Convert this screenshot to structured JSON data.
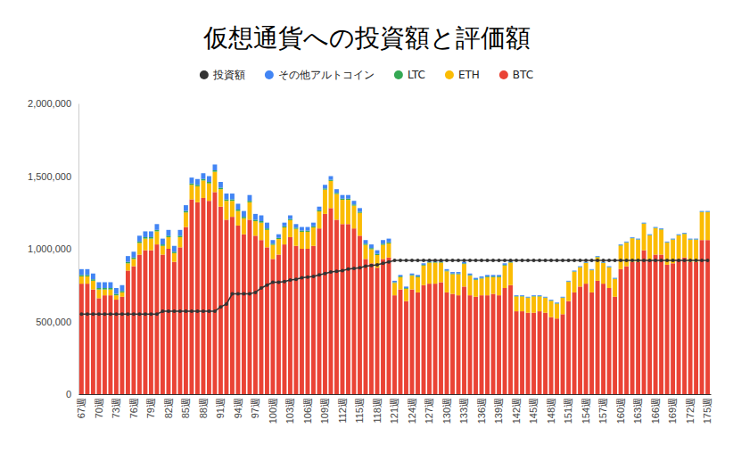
{
  "chart_data": {
    "type": "bar",
    "title": "仮想通貨への投資額と評価額",
    "stacked": true,
    "grid": false,
    "legend": "top",
    "categories": [
      "67週",
      null,
      null,
      "70週",
      null,
      null,
      "73週",
      null,
      null,
      "76週",
      null,
      null,
      "79週",
      null,
      null,
      "82週",
      null,
      null,
      "85週",
      null,
      null,
      "88週",
      null,
      null,
      "91週",
      null,
      null,
      "94週",
      null,
      null,
      "97週",
      null,
      null,
      "100週",
      null,
      null,
      "103週",
      null,
      null,
      "106週",
      null,
      null,
      "109週",
      null,
      null,
      "112週",
      null,
      null,
      "115週",
      null,
      null,
      "118週",
      null,
      null,
      "121週",
      null,
      null,
      "124週",
      null,
      null,
      "127週",
      null,
      null,
      "130週",
      null,
      null,
      "133週",
      null,
      null,
      "136週",
      null,
      null,
      "139週",
      null,
      null,
      "142週",
      null,
      null,
      "145週",
      null,
      null,
      "148週",
      null,
      null,
      "151週",
      null,
      null,
      "154週",
      null,
      null,
      "157週",
      null,
      null,
      "160週",
      null,
      null,
      "163週",
      null,
      null,
      "166週",
      null,
      null,
      "169週",
      null,
      null,
      "172週",
      null,
      null,
      "175週"
    ],
    "ylim": [
      0,
      2000000
    ],
    "yticks": [
      0,
      {
        "value": 500000,
        "label": "500,000"
      },
      {
        "value": 1000000,
        "label": "1,000,000"
      },
      {
        "value": 1500000,
        "label": "1,500,000"
      },
      {
        "value": 2000000,
        "label": "2,000,000"
      }
    ],
    "series": [
      {
        "name": "投資額",
        "type": "line",
        "marker": "circle",
        "color": "#333333",
        "values": [
          550000,
          550000,
          550000,
          550000,
          550000,
          550000,
          550000,
          550000,
          550000,
          550000,
          550000,
          550000,
          550000,
          550000,
          570000,
          570000,
          570000,
          570000,
          570000,
          570000,
          570000,
          570000,
          570000,
          570000,
          600000,
          620000,
          690000,
          690000,
          690000,
          690000,
          700000,
          730000,
          750000,
          770000,
          770000,
          775000,
          785000,
          790000,
          800000,
          805000,
          810000,
          820000,
          830000,
          840000,
          845000,
          850000,
          860000,
          865000,
          870000,
          880000,
          885000,
          890000,
          900000,
          910000,
          920000,
          920000,
          920000,
          920000,
          920000,
          920000,
          920000,
          920000,
          920000,
          920000,
          920000,
          920000,
          920000,
          920000,
          920000,
          920000,
          920000,
          920000,
          920000,
          920000,
          920000,
          920000,
          920000,
          920000,
          920000,
          920000,
          920000,
          920000,
          920000,
          920000,
          920000,
          920000,
          920000,
          920000,
          920000,
          920000,
          920000,
          920000,
          920000,
          920000,
          920000,
          920000,
          920000,
          920000,
          920000,
          920000,
          920000,
          920000,
          920000,
          920000,
          920000,
          920000,
          920000,
          920000,
          920000
        ]
      },
      {
        "name": "その他アルトコイン",
        "color": "#4285f4",
        "values": [
          40000,
          40000,
          40000,
          40000,
          40000,
          40000,
          40000,
          40000,
          40000,
          40000,
          40000,
          40000,
          40000,
          40000,
          40000,
          40000,
          40000,
          40000,
          40000,
          40000,
          40000,
          40000,
          40000,
          40000,
          40000,
          40000,
          40000,
          40000,
          40000,
          40000,
          40000,
          40000,
          40000,
          25000,
          25000,
          25000,
          25000,
          25000,
          25000,
          25000,
          25000,
          25000,
          25000,
          25000,
          25000,
          25000,
          25000,
          25000,
          25000,
          25000,
          25000,
          25000,
          25000,
          25000,
          10000,
          10000,
          10000,
          10000,
          10000,
          10000,
          10000,
          10000,
          10000,
          10000,
          10000,
          10000,
          10000,
          10000,
          10000,
          10000,
          10000,
          10000,
          10000,
          10000,
          10000,
          5000,
          5000,
          5000,
          5000,
          5000,
          5000,
          5000,
          5000,
          5000,
          5000,
          5000,
          5000,
          5000,
          5000,
          5000,
          5000,
          5000,
          5000,
          5000,
          5000,
          5000,
          5000,
          5000,
          5000,
          5000,
          5000,
          5000,
          5000,
          5000,
          5000,
          5000,
          5000,
          5000,
          5000
        ]
      },
      {
        "name": "LTC",
        "color": "#34a853",
        "values": [
          10000,
          10000,
          10000,
          10000,
          10000,
          10000,
          10000,
          10000,
          10000,
          10000,
          10000,
          10000,
          10000,
          10000,
          10000,
          10000,
          10000,
          10000,
          10000,
          10000,
          10000,
          10000,
          10000,
          10000,
          10000,
          10000,
          10000,
          10000,
          10000,
          10000,
          10000,
          10000,
          10000,
          8000,
          8000,
          8000,
          8000,
          8000,
          8000,
          8000,
          8000,
          8000,
          8000,
          8000,
          8000,
          8000,
          8000,
          8000,
          8000,
          8000,
          8000,
          8000,
          8000,
          8000,
          5000,
          5000,
          5000,
          5000,
          5000,
          5000,
          5000,
          5000,
          5000,
          5000,
          5000,
          5000,
          5000,
          5000,
          5000,
          5000,
          5000,
          5000,
          5000,
          5000,
          5000,
          3000,
          3000,
          3000,
          3000,
          3000,
          3000,
          3000,
          3000,
          3000,
          3000,
          3000,
          3000,
          3000,
          3000,
          3000,
          3000,
          3000,
          3000,
          3000,
          3000,
          3000,
          3000,
          3000,
          3000,
          3000,
          3000,
          3000,
          3000,
          3000,
          3000,
          3000,
          3000,
          3000,
          3000
        ]
      },
      {
        "name": "ETH",
        "color": "#fbbc04",
        "values": [
          50000,
          50000,
          60000,
          60000,
          40000,
          40000,
          30000,
          30000,
          50000,
          50000,
          80000,
          80000,
          80000,
          90000,
          60000,
          80000,
          60000,
          70000,
          100000,
          100000,
          110000,
          120000,
          120000,
          140000,
          120000,
          130000,
          110000,
          100000,
          110000,
          120000,
          100000,
          120000,
          120000,
          97000,
          107000,
          117000,
          117000,
          117000,
          117000,
          117000,
          127000,
          117000,
          167000,
          187000,
          177000,
          167000,
          167000,
          157000,
          157000,
          97000,
          97000,
          87000,
          97000,
          97000,
          85000,
          85000,
          85000,
          95000,
          105000,
          135000,
          145000,
          145000,
          135000,
          145000,
          135000,
          145000,
          155000,
          135000,
          115000,
          115000,
          125000,
          115000,
          125000,
          155000,
          155000,
          102000,
          102000,
          102000,
          112000,
          102000,
          102000,
          112000,
          102000,
          112000,
          132000,
          142000,
          132000,
          142000,
          152000,
          162000,
          142000,
          142000,
          122000,
          162000,
          162000,
          162000,
          152000,
          182000,
          172000,
          182000,
          172000,
          152000,
          162000,
          162000,
          162000,
          152000,
          152000,
          192000,
          192000
        ]
      },
      {
        "name": "BTC",
        "color": "#ea4335",
        "values": [
          760000,
          760000,
          720000,
          660000,
          680000,
          680000,
          650000,
          670000,
          850000,
          880000,
          960000,
          990000,
          990000,
          1030000,
          960000,
          1000000,
          910000,
          1010000,
          1150000,
          1340000,
          1320000,
          1350000,
          1330000,
          1390000,
          1290000,
          1200000,
          1220000,
          1160000,
          1100000,
          1200000,
          1090000,
          1060000,
          1010000,
          930000,
          960000,
          1030000,
          1080000,
          1020000,
          1000000,
          1000000,
          1020000,
          1140000,
          1240000,
          1280000,
          1200000,
          1170000,
          1170000,
          1140000,
          1090000,
          930000,
          900000,
          870000,
          930000,
          940000,
          680000,
          720000,
          640000,
          720000,
          700000,
          750000,
          760000,
          760000,
          770000,
          700000,
          690000,
          680000,
          740000,
          680000,
          670000,
          680000,
          680000,
          690000,
          680000,
          730000,
          750000,
          570000,
          570000,
          560000,
          560000,
          570000,
          560000,
          530000,
          520000,
          550000,
          640000,
          700000,
          740000,
          760000,
          700000,
          780000,
          760000,
          730000,
          670000,
          860000,
          880000,
          910000,
          910000,
          990000,
          920000,
          960000,
          960000,
          890000,
          900000,
          930000,
          940000,
          910000,
          910000,
          1060000,
          1060000
        ]
      }
    ]
  }
}
